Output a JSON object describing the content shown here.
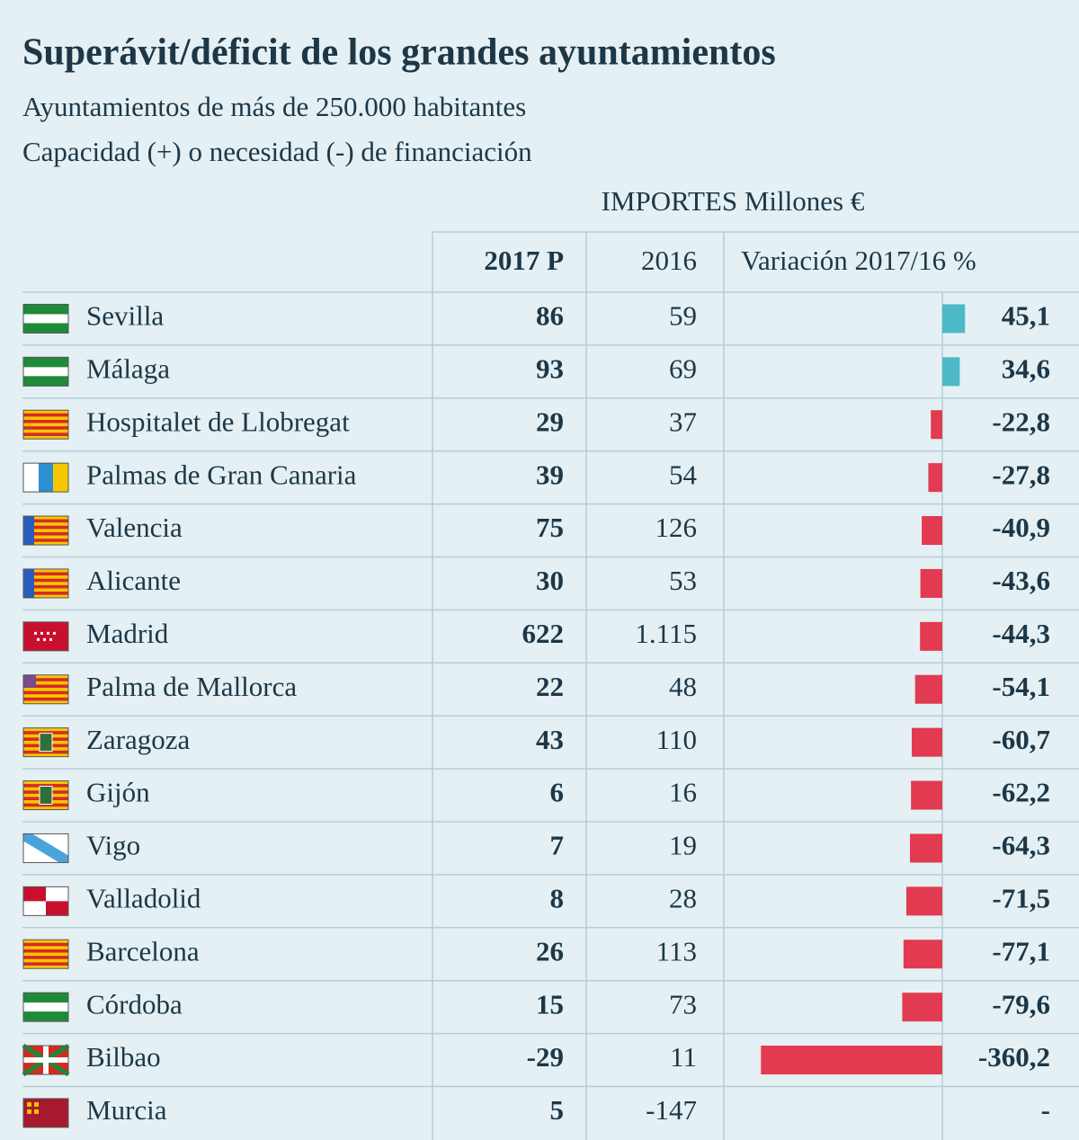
{
  "header": {
    "title": "Superávit/déficit de los grandes ayuntamientos",
    "subtitle": "Ayuntamientos de más de 250.000 habitantes",
    "subtitle2": "Capacidad (+) o necesidad (-) de financiación",
    "units": "IMPORTES Millones €"
  },
  "table": {
    "columns": [
      "2017 P",
      "2016",
      "Variación 2017/16 %"
    ],
    "positive_color": "#4cb9c9",
    "negative_color": "#e23a50",
    "rows": [
      {
        "name": "Sevilla",
        "v2017": "86",
        "v2016": "59",
        "variation": 45.1,
        "variation_label": "45,1"
      },
      {
        "name": "Málaga",
        "v2017": "93",
        "v2016": "69",
        "variation": 34.6,
        "variation_label": "34,6"
      },
      {
        "name": "Hospitalet de Llobregat",
        "v2017": "29",
        "v2016": "37",
        "variation": -22.8,
        "variation_label": "-22,8"
      },
      {
        "name": "Palmas de Gran Canaria",
        "v2017": "39",
        "v2016": "54",
        "variation": -27.8,
        "variation_label": "-27,8"
      },
      {
        "name": "Valencia",
        "v2017": "75",
        "v2016": "126",
        "variation": -40.9,
        "variation_label": "-40,9"
      },
      {
        "name": "Alicante",
        "v2017": "30",
        "v2016": "53",
        "variation": -43.6,
        "variation_label": "-43,6"
      },
      {
        "name": "Madrid",
        "v2017": "622",
        "v2016": "1.115",
        "variation": -44.3,
        "variation_label": "-44,3"
      },
      {
        "name": "Palma de Mallorca",
        "v2017": "22",
        "v2016": "48",
        "variation": -54.1,
        "variation_label": "-54,1"
      },
      {
        "name": "Zaragoza",
        "v2017": "43",
        "v2016": "110",
        "variation": -60.7,
        "variation_label": "-60,7"
      },
      {
        "name": "Gijón",
        "v2017": "6",
        "v2016": "16",
        "variation": -62.2,
        "variation_label": "-62,2"
      },
      {
        "name": "Vigo",
        "v2017": "7",
        "v2016": "19",
        "variation": -64.3,
        "variation_label": "-64,3"
      },
      {
        "name": "Valladolid",
        "v2017": "8",
        "v2016": "28",
        "variation": -71.5,
        "variation_label": "-71,5"
      },
      {
        "name": "Barcelona",
        "v2017": "26",
        "v2016": "113",
        "variation": -77.1,
        "variation_label": "-77,1"
      },
      {
        "name": "Córdoba",
        "v2017": "15",
        "v2016": "73",
        "variation": -79.6,
        "variation_label": "-79,6"
      },
      {
        "name": "Bilbao",
        "v2017": "-29",
        "v2016": "11",
        "variation": -360.2,
        "variation_label": "-360,2"
      },
      {
        "name": "Murcia",
        "v2017": "5",
        "v2016": "-147",
        "variation": null,
        "variation_label": "-"
      }
    ]
  }
}
